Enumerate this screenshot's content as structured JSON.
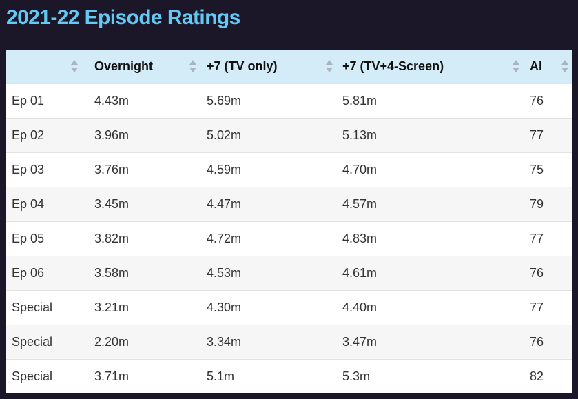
{
  "page": {
    "title": "2021-22 Episode Ratings"
  },
  "table": {
    "headers": [
      "",
      "Overnight",
      "+7 (TV only)",
      "+7 (TV+4-Screen)",
      "AI"
    ],
    "rows": [
      [
        "Ep 01",
        "4.43m",
        "5.69m",
        "5.81m",
        "76"
      ],
      [
        "Ep 02",
        "3.96m",
        "5.02m",
        "5.13m",
        "77"
      ],
      [
        "Ep 03",
        "3.76m",
        "4.59m",
        "4.70m",
        "75"
      ],
      [
        "Ep 04",
        "3.45m",
        "4.47m",
        "4.57m",
        "79"
      ],
      [
        "Ep 05",
        "3.82m",
        "4.72m",
        "4.83m",
        "77"
      ],
      [
        "Ep 06",
        "3.58m",
        "4.53m",
        "4.61m",
        "76"
      ],
      [
        "Special",
        "3.21m",
        "4.30m",
        "4.40m",
        "77"
      ],
      [
        "Special",
        "2.20m",
        "3.34m",
        "3.47m",
        "76"
      ],
      [
        "Special",
        "3.71m",
        "5.1m",
        "5.3m",
        "82"
      ]
    ]
  },
  "colors": {
    "background": "#1c1629",
    "title": "#62c8f4",
    "header_bg": "#d4ecf7",
    "row_alt_bg": "#f6f6f6"
  }
}
